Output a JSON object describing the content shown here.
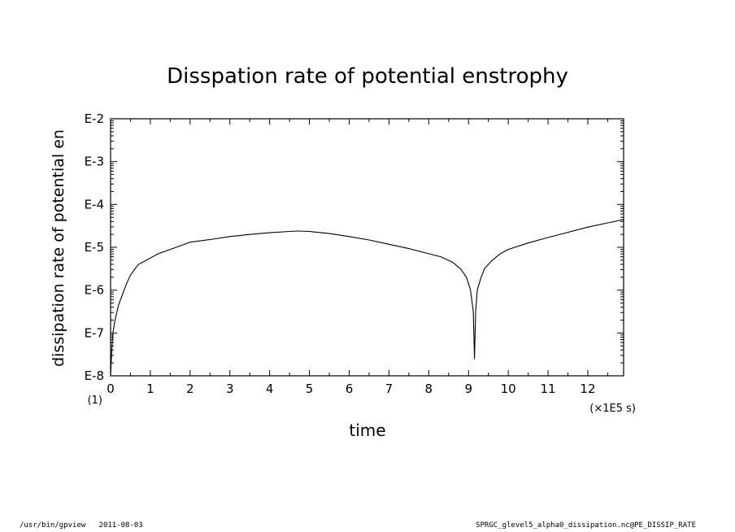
{
  "chart_data": {
    "type": "line",
    "title": "Disspation rate of potential enstrophy",
    "xlabel": "time",
    "ylabel": "dissipation rate of potential en",
    "x_unit_label": "(×1E5 s)",
    "y_scale_label": "(1)",
    "y_scale": "log",
    "xlim": [
      0,
      12.9
    ],
    "ylim": [
      -8,
      -2
    ],
    "x_ticks": [
      "0",
      "1",
      "2",
      "3",
      "4",
      "5",
      "6",
      "7",
      "8",
      "9",
      "10",
      "11",
      "12"
    ],
    "y_ticks": [
      "E-8",
      "E-7",
      "E-6",
      "E-5",
      "E-4",
      "E-3",
      "E-2"
    ],
    "grid": false,
    "series": [
      {
        "x": [
          0.0,
          0.03,
          0.06,
          0.1,
          0.15,
          0.2,
          0.3,
          0.4,
          0.5,
          0.7,
          0.9,
          1.2,
          1.5,
          1.8,
          2.0,
          2.5,
          3.0,
          3.5,
          4.0,
          4.5,
          4.7,
          5.0,
          5.5,
          6.0,
          6.5,
          7.0,
          7.5,
          8.0,
          8.3,
          8.6,
          8.8,
          8.95,
          9.05,
          9.12,
          9.15,
          9.18,
          9.22,
          9.3,
          9.4,
          9.6,
          9.8,
          10.0,
          10.5,
          11.0,
          11.5,
          12.0,
          12.5,
          12.9
        ],
        "y": [
          -8.0,
          -7.4,
          -7.0,
          -6.75,
          -6.55,
          -6.35,
          -6.1,
          -5.85,
          -5.65,
          -5.4,
          -5.3,
          -5.15,
          -5.05,
          -4.95,
          -4.88,
          -4.82,
          -4.75,
          -4.7,
          -4.66,
          -4.63,
          -4.62,
          -4.63,
          -4.68,
          -4.75,
          -4.83,
          -4.93,
          -5.03,
          -5.15,
          -5.22,
          -5.35,
          -5.5,
          -5.7,
          -6.0,
          -6.5,
          -7.6,
          -6.5,
          -6.0,
          -5.75,
          -5.5,
          -5.3,
          -5.15,
          -5.05,
          -4.9,
          -4.77,
          -4.65,
          -4.53,
          -4.43,
          -4.35
        ]
      }
    ]
  },
  "footer": {
    "left": "/usr/bin/gpview   2011-08-03",
    "right": "SPRGC_glevel5_alpha0_dissipation.nc@PE_DISSIP_RATE"
  }
}
